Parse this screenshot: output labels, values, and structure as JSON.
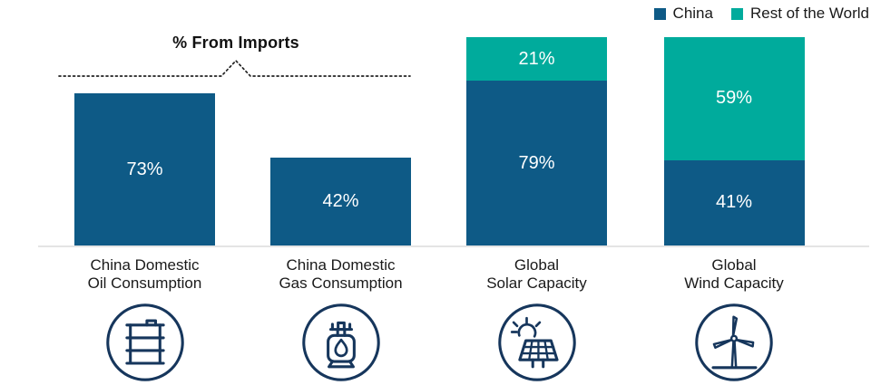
{
  "colors": {
    "china": "#0E5A86",
    "rest_of_world": "#00AB9C",
    "icon_navy": "#16365C",
    "baseline_gray": "#E4E4E4",
    "label_text": "#1A1A1A",
    "value_text": "#FFFFFF"
  },
  "legend": {
    "items": [
      {
        "label": "China",
        "color_key": "china"
      },
      {
        "label": "Rest of the World",
        "color_key": "rest_of_world"
      }
    ]
  },
  "annotation": {
    "imports_label": "% From Imports"
  },
  "chart_data": {
    "type": "bar",
    "stacked": true,
    "unit": "%",
    "title": "",
    "xlabel": "",
    "ylabel": "",
    "ylim": [
      0,
      100
    ],
    "grid": false,
    "legend_position": "top-right",
    "categories": [
      "China Domestic Oil Consumption",
      "China Domestic Gas Consumption",
      "Global Solar Capacity",
      "Global Wind Capacity"
    ],
    "series": [
      {
        "name": "China",
        "values": [
          73,
          42,
          79,
          41
        ]
      },
      {
        "name": "Rest of the World",
        "values": [
          null,
          null,
          21,
          59
        ]
      }
    ],
    "annotation": {
      "text": "% From Imports",
      "style": "dotted bracket with center peak",
      "applies_to": [
        "China Domestic Oil Consumption",
        "China Domestic Gas Consumption"
      ]
    }
  },
  "bars": [
    {
      "category_lines": [
        "China Domestic",
        "Oil Consumption"
      ],
      "icon": "oil-barrel-icon",
      "segments": [
        {
          "series": "China",
          "value": 73,
          "label": "73%"
        }
      ]
    },
    {
      "category_lines": [
        "China Domestic",
        "Gas Consumption"
      ],
      "icon": "gas-tank-icon",
      "segments": [
        {
          "series": "China",
          "value": 42,
          "label": "42%"
        }
      ]
    },
    {
      "category_lines": [
        "Global",
        "Solar Capacity"
      ],
      "icon": "solar-panel-icon",
      "segments": [
        {
          "series": "China",
          "value": 79,
          "label": "79%"
        },
        {
          "series": "Rest of the World",
          "value": 21,
          "label": "21%"
        }
      ]
    },
    {
      "category_lines": [
        "Global",
        "Wind Capacity"
      ],
      "icon": "wind-turbine-icon",
      "segments": [
        {
          "series": "China",
          "value": 41,
          "label": "41%"
        },
        {
          "series": "Rest of the World",
          "value": 59,
          "label": "59%"
        }
      ]
    }
  ]
}
